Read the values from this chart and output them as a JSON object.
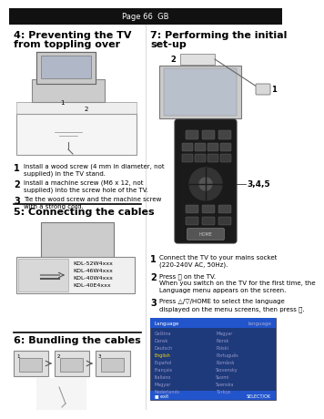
{
  "page_bg": "#ffffff",
  "header_bg": "#000000",
  "header_text_color": "#ffffff",
  "sec4_title": "4: Preventing the TV\nfrom toppling over",
  "sec4_items": [
    [
      "Install a wood screw (4 mm in diameter, not",
      "supplied) in the TV stand."
    ],
    [
      "Install a machine screw (M6 x 12, not",
      "supplied) into the screw hole of the TV."
    ],
    [
      "Tie the wood screw and the machine screw",
      "with a strong cord."
    ]
  ],
  "sec5_title": "5: Connecting the cables",
  "sec5_models": [
    "KDL-52W4xxx",
    "KDL-46W4xxx",
    "KDL-40W4xxx",
    "KDL-40E4xxx"
  ],
  "sec6_title": "6: Bundling the cables",
  "sec7_title": "7: Performing the initial\nset-up",
  "sec7_items": [
    [
      "Connect the TV to your mains socket",
      "(220-240V AC, 50Hz)."
    ],
    [
      "Press ⏻ on the TV.",
      "When you switch on the TV for the first time, the",
      "Language menu appears on the screen."
    ],
    [
      "Press △/▽/HOME to select the language",
      "displayed on the menu screens, then press ⓪."
    ]
  ],
  "label_345": "3,4,5",
  "menu_items_left": [
    "Ceština",
    "Dansk",
    "Deutsch",
    "English",
    "Español",
    "Français",
    "Italiano",
    "Magyar",
    "Nederlands"
  ],
  "menu_items_right": [
    "Magyar",
    "Norsk",
    "Polski",
    "Português",
    "Română",
    "Slovensky",
    "Suomi",
    "Svenska",
    "Türkçe"
  ],
  "menu_highlight": 3
}
